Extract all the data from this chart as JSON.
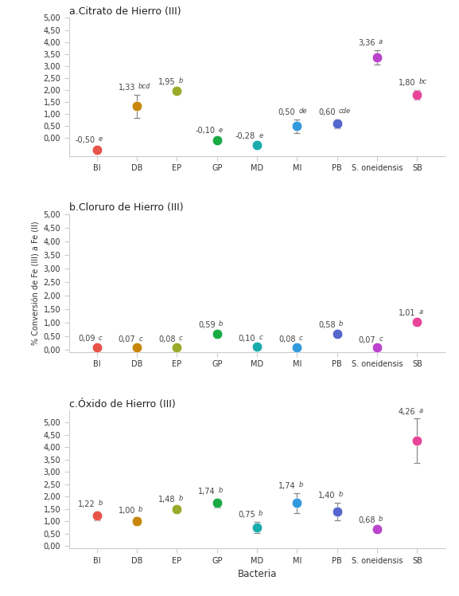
{
  "categories": [
    "BI",
    "DB",
    "EP",
    "GP",
    "MD",
    "MI",
    "PB",
    "S. oneidensis",
    "SB"
  ],
  "colors": [
    "#e8534a",
    "#c8860a",
    "#9aab2a",
    "#1aaa44",
    "#1aabab",
    "#3399dd",
    "#5566cc",
    "#bb44cc",
    "#e84499"
  ],
  "panel_a": {
    "title": "a.Citrato de Hierro (III)",
    "values": [
      -0.5,
      1.33,
      1.95,
      -0.1,
      -0.28,
      0.5,
      0.6,
      3.36,
      1.8
    ],
    "errors": [
      0.12,
      0.48,
      0.08,
      0.1,
      0.05,
      0.28,
      0.18,
      0.3,
      0.2
    ],
    "labels": [
      "-0,50",
      "1,33",
      "1,95",
      "-0,10",
      "-0,28",
      "0,50",
      "0,60",
      "3,36",
      "1,80"
    ],
    "sig": [
      "e",
      "bcd",
      "b",
      "e",
      "e",
      "de",
      "cde",
      "a",
      "bc"
    ],
    "ylim": [
      -0.75,
      5.0
    ],
    "yticks": [
      0.0,
      0.5,
      1.0,
      1.5,
      2.0,
      2.5,
      3.0,
      3.5,
      4.0,
      4.5,
      5.0
    ]
  },
  "panel_b": {
    "title": "b.Cloruro de Hierro (III)",
    "values": [
      0.09,
      0.07,
      0.08,
      0.59,
      0.1,
      0.08,
      0.58,
      0.07,
      1.01
    ],
    "errors": [
      0.04,
      0.03,
      0.03,
      0.05,
      0.04,
      0.03,
      0.07,
      0.02,
      0.07
    ],
    "labels": [
      "0,09",
      "0,07",
      "0,08",
      "0,59",
      "0,10",
      "0,08",
      "0,58",
      "0,07",
      "1,01"
    ],
    "sig": [
      "c",
      "c",
      "c",
      "b",
      "c",
      "c",
      "b",
      "c",
      "a"
    ],
    "ylim": [
      -0.1,
      5.0
    ],
    "yticks": [
      0.0,
      0.5,
      1.0,
      1.5,
      2.0,
      2.5,
      3.0,
      3.5,
      4.0,
      4.5,
      5.0
    ]
  },
  "panel_c": {
    "title": "c.Óxido de Hierro (III)",
    "values": [
      1.22,
      1.0,
      1.48,
      1.74,
      0.75,
      1.74,
      1.4,
      0.68,
      4.26
    ],
    "errors": [
      0.18,
      0.15,
      0.12,
      0.18,
      0.22,
      0.4,
      0.35,
      0.08,
      0.9
    ],
    "labels": [
      "1,22",
      "1,00",
      "1,48",
      "1,74",
      "0,75",
      "1,74",
      "1,40",
      "0,68",
      "4,26"
    ],
    "sig": [
      "b",
      "b",
      "b",
      "b",
      "b",
      "b",
      "b",
      "b",
      "a"
    ],
    "ylim": [
      -0.1,
      5.5
    ],
    "yticks": [
      0.0,
      0.5,
      1.0,
      1.5,
      2.0,
      2.5,
      3.0,
      3.5,
      4.0,
      4.5,
      5.0
    ]
  },
  "ylabel": "% Conversión de Fe (III) a Fe (II)",
  "xlabel": "Bacteria",
  "background_color": "#ffffff",
  "marker_size": 9,
  "capsize": 3,
  "label_fontsize": 7,
  "sig_fontsize": 6.5,
  "title_fontsize": 9,
  "tick_fontsize": 7
}
